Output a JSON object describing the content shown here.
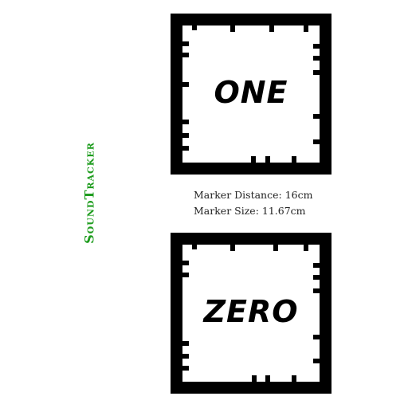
{
  "brand": {
    "text": "SoundTracker",
    "color": "#1e9c1e"
  },
  "markers": [
    {
      "id": "one",
      "label": "ONE"
    },
    {
      "id": "zero",
      "label": "ZERO"
    }
  ],
  "info": {
    "distance": "Marker Distance: 16cm",
    "size": "Marker Size: 11.67cm"
  }
}
